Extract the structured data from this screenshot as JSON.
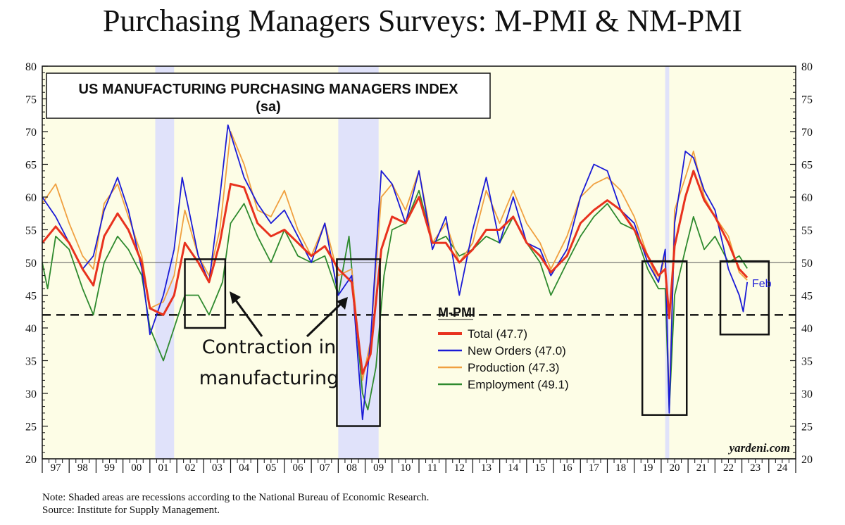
{
  "header": {
    "title": "Purchasing Managers Surveys: M-PMI & NM-PMI"
  },
  "notes": {
    "note": "Note: Shaded areas are recessions according to the National Bureau of Economic Research.",
    "source": "Source: Institute for Supply Management."
  },
  "chart_data": {
    "type": "line",
    "title": "US MANUFACTURING PURCHASING MANAGERS INDEX",
    "subtitle": "(sa)",
    "ylim": [
      20,
      80
    ],
    "xlim": [
      1997.0,
      2025.0
    ],
    "y_ticks": [
      20,
      25,
      30,
      35,
      40,
      45,
      50,
      55,
      60,
      65,
      70,
      75,
      80
    ],
    "year_labels": [
      "97",
      "98",
      "99",
      "00",
      "01",
      "02",
      "03",
      "04",
      "05",
      "06",
      "07",
      "08",
      "09",
      "10",
      "11",
      "12",
      "13",
      "14",
      "15",
      "16",
      "17",
      "18",
      "19",
      "20",
      "21",
      "22",
      "23",
      "24"
    ],
    "reference_line": 50,
    "dashed_line": 42,
    "recessions": [
      [
        2001.2,
        2001.9
      ],
      [
        2008.0,
        2009.5
      ],
      [
        2020.15,
        2020.3
      ]
    ],
    "legend_title": "M-PMI",
    "last_label": "Feb",
    "watermark": "yardeni.com",
    "annotation": "Contraction in manufacturing",
    "annotation_lines": [
      "Contraction in",
      "manufacturing"
    ],
    "contraction_boxes": [
      {
        "x0": 2002.3,
        "x1": 2003.8,
        "y0": 40,
        "y1": 50.5
      },
      {
        "x0": 2007.95,
        "x1": 2009.55,
        "y0": 25,
        "y1": 50.5
      },
      {
        "x0": 2019.3,
        "x1": 2020.95,
        "y0": 26.7,
        "y1": 50.2
      },
      {
        "x0": 2022.2,
        "x1": 2024.0,
        "y0": 39,
        "y1": 50.2
      }
    ],
    "series": [
      {
        "name": "Total",
        "legend": "Total (47.7)",
        "color": "#e8321e",
        "width": 3,
        "points": [
          [
            1997.0,
            53
          ],
          [
            1997.5,
            55.5
          ],
          [
            1998.0,
            53
          ],
          [
            1998.5,
            49
          ],
          [
            1998.9,
            46.5
          ],
          [
            1999.3,
            54
          ],
          [
            1999.8,
            57.5
          ],
          [
            2000.2,
            55
          ],
          [
            2000.7,
            50
          ],
          [
            2001.0,
            43
          ],
          [
            2001.5,
            42
          ],
          [
            2001.9,
            45
          ],
          [
            2002.3,
            53
          ],
          [
            2002.8,
            50
          ],
          [
            2003.2,
            47
          ],
          [
            2003.6,
            53
          ],
          [
            2004.0,
            62
          ],
          [
            2004.5,
            61.5
          ],
          [
            2005.0,
            56
          ],
          [
            2005.5,
            54
          ],
          [
            2006.0,
            55
          ],
          [
            2006.5,
            53
          ],
          [
            2007.0,
            51
          ],
          [
            2007.5,
            52.5
          ],
          [
            2008.0,
            49
          ],
          [
            2008.5,
            47
          ],
          [
            2008.9,
            33
          ],
          [
            2009.2,
            36
          ],
          [
            2009.6,
            52
          ],
          [
            2010.0,
            57
          ],
          [
            2010.5,
            56
          ],
          [
            2011.0,
            60
          ],
          [
            2011.5,
            53
          ],
          [
            2012.0,
            53
          ],
          [
            2012.5,
            50
          ],
          [
            2013.0,
            52
          ],
          [
            2013.5,
            55
          ],
          [
            2014.0,
            55
          ],
          [
            2014.5,
            57
          ],
          [
            2015.0,
            53
          ],
          [
            2015.5,
            51
          ],
          [
            2015.9,
            48.5
          ],
          [
            2016.5,
            51
          ],
          [
            2017.0,
            56
          ],
          [
            2017.5,
            58
          ],
          [
            2018.0,
            59.5
          ],
          [
            2018.5,
            58
          ],
          [
            2019.0,
            55
          ],
          [
            2019.5,
            51
          ],
          [
            2019.9,
            48
          ],
          [
            2020.15,
            49
          ],
          [
            2020.3,
            41.5
          ],
          [
            2020.5,
            52.5
          ],
          [
            2020.9,
            60
          ],
          [
            2021.2,
            64
          ],
          [
            2021.6,
            59.5
          ],
          [
            2022.0,
            57
          ],
          [
            2022.5,
            53
          ],
          [
            2022.9,
            49
          ],
          [
            2023.2,
            47.7
          ]
        ]
      },
      {
        "name": "New Orders",
        "legend": "New Orders (47.0)",
        "color": "#1a1ad6",
        "width": 1.8,
        "points": [
          [
            1997.0,
            60
          ],
          [
            1997.5,
            57
          ],
          [
            1998.0,
            53
          ],
          [
            1998.5,
            49
          ],
          [
            1998.9,
            51
          ],
          [
            1999.3,
            58
          ],
          [
            1999.8,
            63
          ],
          [
            2000.2,
            58
          ],
          [
            2000.7,
            49
          ],
          [
            2001.0,
            39
          ],
          [
            2001.5,
            45
          ],
          [
            2001.9,
            52
          ],
          [
            2002.2,
            63
          ],
          [
            2002.8,
            51
          ],
          [
            2003.2,
            47
          ],
          [
            2003.6,
            60
          ],
          [
            2003.9,
            71
          ],
          [
            2004.5,
            63
          ],
          [
            2005.0,
            59
          ],
          [
            2005.5,
            56
          ],
          [
            2006.0,
            58
          ],
          [
            2006.5,
            54
          ],
          [
            2007.0,
            50
          ],
          [
            2007.5,
            56
          ],
          [
            2008.0,
            45
          ],
          [
            2008.5,
            48
          ],
          [
            2008.9,
            26
          ],
          [
            2009.2,
            38
          ],
          [
            2009.6,
            64
          ],
          [
            2010.0,
            62
          ],
          [
            2010.5,
            56
          ],
          [
            2011.0,
            64
          ],
          [
            2011.5,
            52
          ],
          [
            2012.0,
            57
          ],
          [
            2012.5,
            45
          ],
          [
            2013.0,
            55
          ],
          [
            2013.5,
            63
          ],
          [
            2014.0,
            53
          ],
          [
            2014.5,
            60
          ],
          [
            2015.0,
            53
          ],
          [
            2015.5,
            52
          ],
          [
            2015.9,
            48
          ],
          [
            2016.5,
            52
          ],
          [
            2017.0,
            60
          ],
          [
            2017.5,
            65
          ],
          [
            2018.0,
            64
          ],
          [
            2018.5,
            58
          ],
          [
            2019.0,
            56
          ],
          [
            2019.5,
            50
          ],
          [
            2019.9,
            47
          ],
          [
            2020.15,
            52
          ],
          [
            2020.3,
            27
          ],
          [
            2020.5,
            56
          ],
          [
            2020.9,
            67
          ],
          [
            2021.2,
            66
          ],
          [
            2021.6,
            61
          ],
          [
            2022.0,
            58
          ],
          [
            2022.5,
            49
          ],
          [
            2022.9,
            45
          ],
          [
            2023.05,
            42.5
          ],
          [
            2023.2,
            47
          ]
        ]
      },
      {
        "name": "Production",
        "legend": "Production (47.3)",
        "color": "#f0a040",
        "width": 1.8,
        "points": [
          [
            1997.0,
            59
          ],
          [
            1997.5,
            62
          ],
          [
            1998.0,
            56
          ],
          [
            1998.5,
            51
          ],
          [
            1998.9,
            49
          ],
          [
            1999.3,
            59
          ],
          [
            1999.8,
            62
          ],
          [
            2000.2,
            57
          ],
          [
            2000.7,
            51
          ],
          [
            2001.0,
            43
          ],
          [
            2001.5,
            44
          ],
          [
            2001.9,
            48
          ],
          [
            2002.3,
            58
          ],
          [
            2002.8,
            51
          ],
          [
            2003.2,
            48
          ],
          [
            2003.6,
            55
          ],
          [
            2004.0,
            70
          ],
          [
            2004.5,
            65
          ],
          [
            2005.0,
            58
          ],
          [
            2005.5,
            57
          ],
          [
            2006.0,
            61
          ],
          [
            2006.5,
            55
          ],
          [
            2007.0,
            51
          ],
          [
            2007.5,
            56
          ],
          [
            2008.0,
            48
          ],
          [
            2008.5,
            49
          ],
          [
            2008.9,
            32
          ],
          [
            2009.2,
            38
          ],
          [
            2009.6,
            60
          ],
          [
            2010.0,
            62
          ],
          [
            2010.5,
            58
          ],
          [
            2011.0,
            64
          ],
          [
            2011.5,
            53
          ],
          [
            2012.0,
            56
          ],
          [
            2012.5,
            50
          ],
          [
            2013.0,
            53
          ],
          [
            2013.5,
            61
          ],
          [
            2014.0,
            56
          ],
          [
            2014.5,
            61
          ],
          [
            2015.0,
            56
          ],
          [
            2015.5,
            53
          ],
          [
            2015.9,
            49
          ],
          [
            2016.5,
            54
          ],
          [
            2017.0,
            60
          ],
          [
            2017.5,
            62
          ],
          [
            2018.0,
            63
          ],
          [
            2018.5,
            61
          ],
          [
            2019.0,
            57
          ],
          [
            2019.5,
            51
          ],
          [
            2019.9,
            47
          ],
          [
            2020.15,
            51
          ],
          [
            2020.3,
            28
          ],
          [
            2020.5,
            58
          ],
          [
            2020.9,
            63
          ],
          [
            2021.2,
            67
          ],
          [
            2021.6,
            60
          ],
          [
            2022.0,
            57
          ],
          [
            2022.5,
            54
          ],
          [
            2022.9,
            48.5
          ],
          [
            2023.2,
            47.3
          ]
        ]
      },
      {
        "name": "Employment",
        "legend": "Employment (49.1)",
        "color": "#2e8a2e",
        "width": 1.8,
        "points": [
          [
            1997.0,
            50
          ],
          [
            1997.2,
            46
          ],
          [
            1997.5,
            54
          ],
          [
            1998.0,
            52
          ],
          [
            1998.5,
            46
          ],
          [
            1998.9,
            42
          ],
          [
            1999.3,
            50
          ],
          [
            1999.8,
            54
          ],
          [
            2000.2,
            52
          ],
          [
            2000.7,
            48
          ],
          [
            2001.0,
            40
          ],
          [
            2001.5,
            35
          ],
          [
            2001.9,
            40
          ],
          [
            2002.3,
            45
          ],
          [
            2002.8,
            45
          ],
          [
            2003.2,
            42
          ],
          [
            2003.7,
            47
          ],
          [
            2004.0,
            56
          ],
          [
            2004.5,
            59
          ],
          [
            2005.0,
            54
          ],
          [
            2005.5,
            50
          ],
          [
            2006.0,
            55
          ],
          [
            2006.5,
            51
          ],
          [
            2007.0,
            50
          ],
          [
            2007.5,
            51
          ],
          [
            2008.0,
            45
          ],
          [
            2008.4,
            54
          ],
          [
            2008.9,
            30
          ],
          [
            2009.1,
            27.5
          ],
          [
            2009.4,
            34
          ],
          [
            2009.7,
            48
          ],
          [
            2010.0,
            55
          ],
          [
            2010.5,
            56
          ],
          [
            2011.0,
            61
          ],
          [
            2011.5,
            53
          ],
          [
            2012.0,
            54
          ],
          [
            2012.5,
            51
          ],
          [
            2013.0,
            52
          ],
          [
            2013.5,
            54
          ],
          [
            2014.0,
            53
          ],
          [
            2014.5,
            57
          ],
          [
            2015.0,
            53
          ],
          [
            2015.5,
            50
          ],
          [
            2015.9,
            45
          ],
          [
            2016.5,
            50
          ],
          [
            2017.0,
            54
          ],
          [
            2017.5,
            57
          ],
          [
            2018.0,
            59
          ],
          [
            2018.5,
            56
          ],
          [
            2019.0,
            55
          ],
          [
            2019.5,
            49
          ],
          [
            2019.9,
            46
          ],
          [
            2020.15,
            46
          ],
          [
            2020.3,
            27.5
          ],
          [
            2020.5,
            45
          ],
          [
            2020.9,
            52
          ],
          [
            2021.2,
            57
          ],
          [
            2021.6,
            52
          ],
          [
            2022.0,
            54
          ],
          [
            2022.5,
            50
          ],
          [
            2022.9,
            51
          ],
          [
            2023.2,
            49.1
          ]
        ]
      }
    ]
  }
}
